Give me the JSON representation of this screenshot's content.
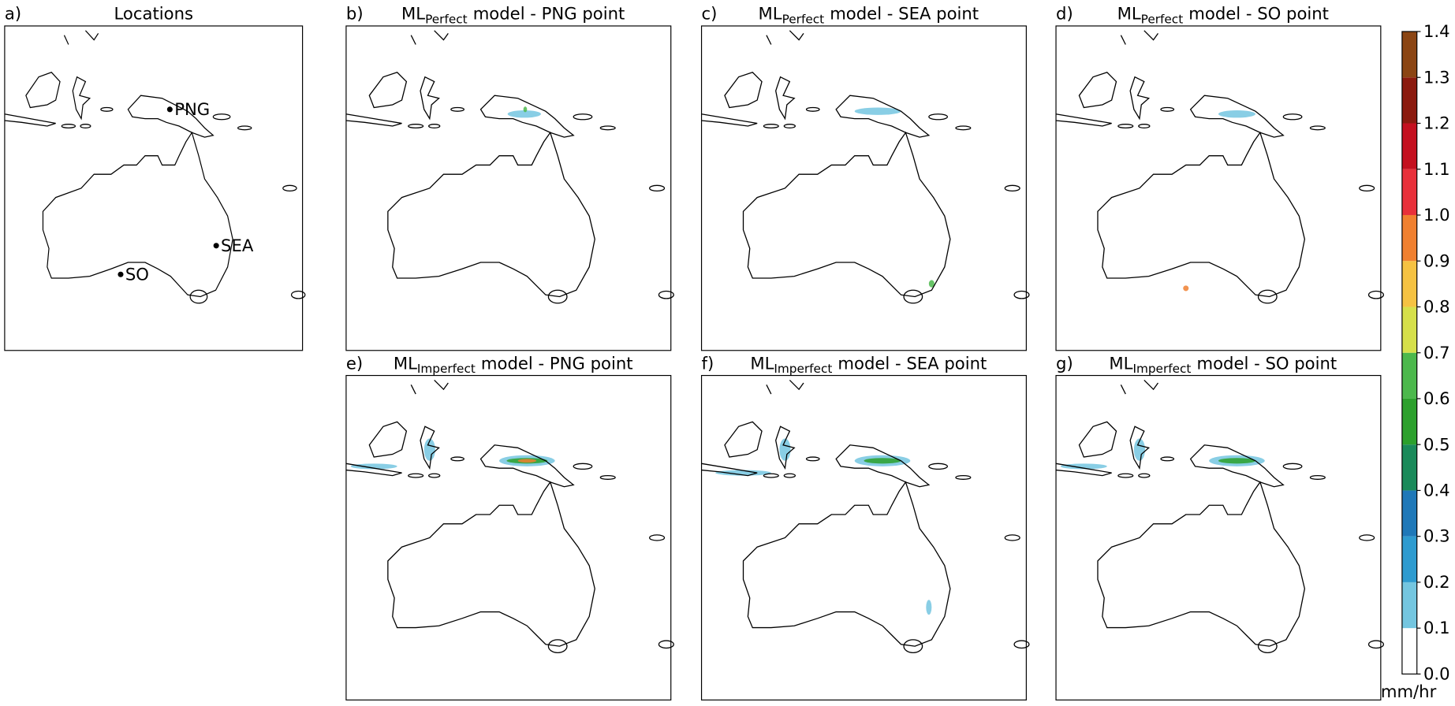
{
  "panels": [
    {
      "label": "a)",
      "title": "Locations",
      "points": [
        "PNG",
        "SEA",
        "SO"
      ]
    },
    {
      "label": "b)",
      "title_main": "ML",
      "title_sub": "Perfect",
      "title_rest": "model - PNG point"
    },
    {
      "label": "c)",
      "title_main": "ML",
      "title_sub": "Perfect",
      "title_rest": "model - SEA point"
    },
    {
      "label": "d)",
      "title_main": "ML",
      "title_sub": "Perfect",
      "title_rest": "model - SO point"
    },
    {
      "label": "e)",
      "title_main": "ML",
      "title_sub": "Imperfect",
      "title_rest": "model - PNG point"
    },
    {
      "label": "f)",
      "title_main": "ML",
      "title_sub": "Imperfect",
      "title_rest": "model - SEA point"
    },
    {
      "label": "g)",
      "title_main": "ML",
      "title_sub": "Imperfect",
      "title_rest": "model - SO point"
    }
  ],
  "colorbar": {
    "ylim": [
      0,
      1.4
    ],
    "ticks": [
      {
        "value": 0,
        "label": "0.0"
      },
      0.1,
      0.2,
      0.3,
      0.4,
      0.5,
      0.6,
      0.7,
      0.8,
      0.9,
      {
        "value": 1,
        "label": "1.0"
      },
      1.1,
      1.2,
      1.3,
      1.4
    ],
    "colors": [
      "#ffffff",
      "#74c6e0",
      "#2e9bcf",
      "#1f78b8",
      "#1a8a5a",
      "#2ca02c",
      "#4cb84c",
      "#d6e04a",
      "#f5c242",
      "#f08030",
      "#e8303a",
      "#c4101f",
      "#8b1a0e",
      "#8b4513"
    ],
    "unit": "mm/hr"
  }
}
